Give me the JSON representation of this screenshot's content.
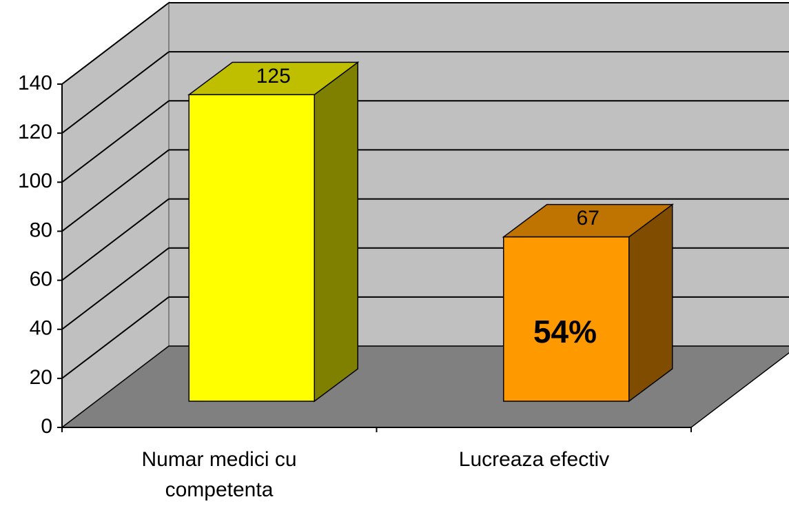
{
  "chart_data": {
    "type": "bar3d",
    "categories": [
      "Numar medici cu competenta",
      "Lucreaza efectiv"
    ],
    "values": [
      125,
      67
    ],
    "colors": [
      "#FFFF00",
      "#FF9900"
    ],
    "ylim": [
      0,
      140
    ],
    "yticks": [
      0,
      20,
      40,
      60,
      80,
      100,
      120,
      140
    ],
    "grid": true,
    "annotation": "54%"
  }
}
